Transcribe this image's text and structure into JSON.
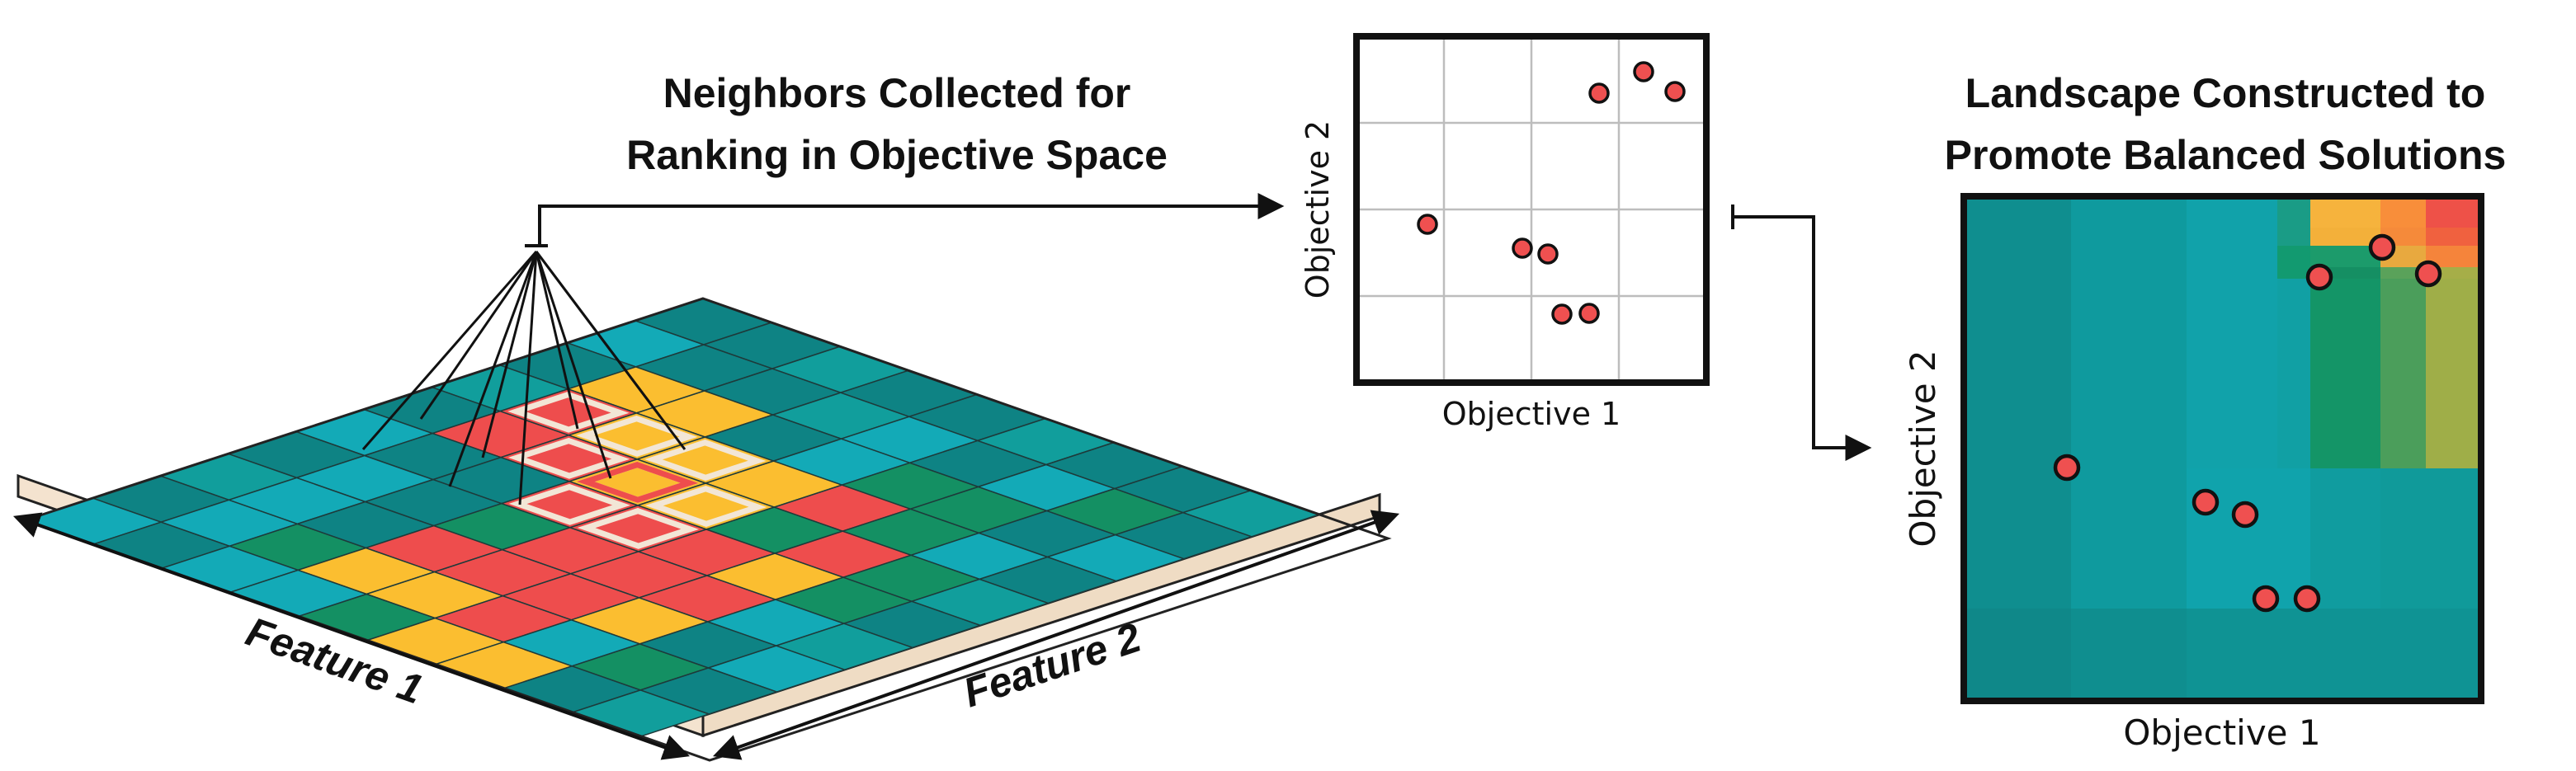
{
  "colors": {
    "teal_dark": "#0e8384",
    "teal_mid": "#119e9c",
    "teal_light": "#13aab7",
    "green": "#149063",
    "yellow": "#fbbe30",
    "red": "#ee4d4d",
    "base": "#f4e3cf",
    "dot": "#ef5050",
    "landscape_base": "#118e8e",
    "landscape_light": "#0fa2ae",
    "landscape_green": "#129a6f",
    "landscape_olive": "#9aae4a",
    "landscape_orange": "#f88e3a",
    "landscape_gold": "#f6b33d"
  },
  "labels": {
    "middle_title_line1": "Neighbors Collected for",
    "middle_title_line2": "Ranking in Objective Space",
    "right_title_line1": "Landscape Constructed to",
    "right_title_line2": "Promote Balanced Solutions",
    "small_plot_xlabel": "Objective 1",
    "small_plot_ylabel": "Objective 2",
    "big_plot_xlabel": "Objective 1",
    "big_plot_ylabel": "Objective 2",
    "feature1": "Feature 1",
    "feature2": "Feature 2"
  },
  "grid": {
    "cells": [
      "TTSTTSTTS",
      "LTTSLTLGT",
      "TYYTLGGTL",
      "SRYYYRGLT",
      "TRRYYGRGS",
      "LTTRRRYGT",
      "TLTGRRRLS",
      "SLTRRRYTL",
      "TLGYYRLGT",
      "LTLLGYYTS"
    ],
    "highlighted_neighbors": [
      [
        3,
        1
      ],
      [
        3,
        2
      ],
      [
        4,
        2
      ],
      [
        4,
        3
      ],
      [
        5,
        3
      ],
      [
        5,
        4
      ],
      [
        3,
        3
      ],
      [
        4,
        4
      ]
    ],
    "focal_cell": [
      4,
      3
    ]
  }
}
